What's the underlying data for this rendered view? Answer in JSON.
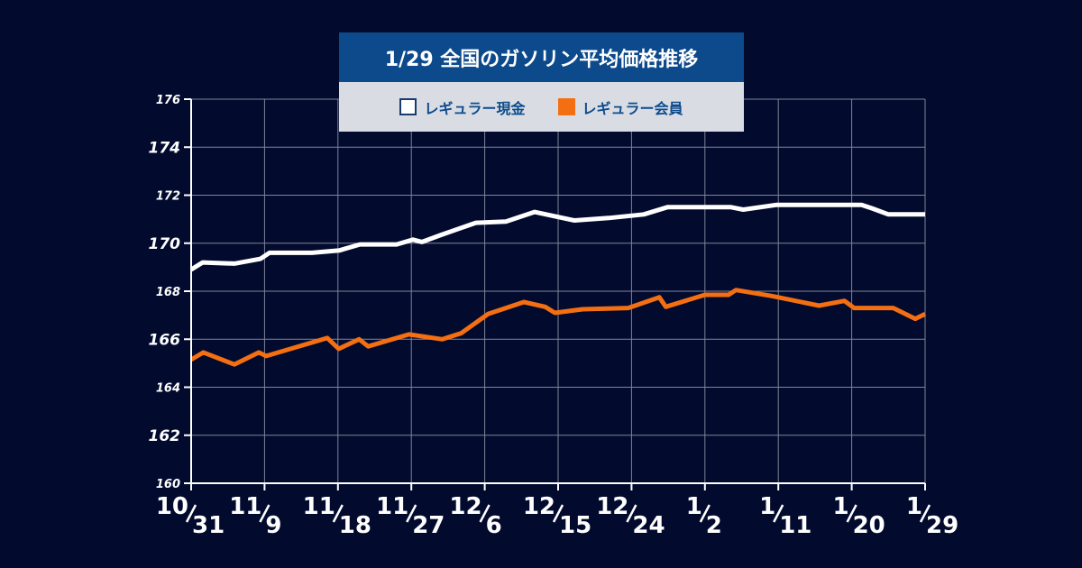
{
  "colors": {
    "background": "#020a2e",
    "grid": "#7f8597",
    "axis": "#ffffff",
    "title_bg": "#0d4a8c",
    "legend_bg": "#d9dde3",
    "cash": "#ffffff",
    "member": "#f36f12"
  },
  "chart_data": {
    "type": "line",
    "title": "1/29 全国のガソリン平均価格推移",
    "ylim": [
      160,
      176
    ],
    "yticks": [
      176,
      174,
      172,
      170,
      168,
      166,
      164,
      162,
      160
    ],
    "xlim": [
      0,
      90
    ],
    "xticks": [
      {
        "x": 0,
        "month": "10",
        "day": "31"
      },
      {
        "x": 9,
        "month": "11",
        "day": "9"
      },
      {
        "x": 18,
        "month": "11",
        "day": "18"
      },
      {
        "x": 27,
        "month": "11",
        "day": "27"
      },
      {
        "x": 36,
        "month": "12",
        "day": "6"
      },
      {
        "x": 45,
        "month": "12",
        "day": "15"
      },
      {
        "x": 54,
        "month": "12",
        "day": "24"
      },
      {
        "x": 63,
        "month": "1",
        "day": "2"
      },
      {
        "x": 72,
        "month": "1",
        "day": "11"
      },
      {
        "x": 81,
        "month": "1",
        "day": "20"
      },
      {
        "x": 90,
        "month": "1",
        "day": "29"
      }
    ],
    "series": [
      {
        "name": "レギュラー現金",
        "color": "#ffffff",
        "points": [
          [
            0,
            168.9
          ],
          [
            1.4,
            169.2
          ],
          [
            5.3,
            169.15
          ],
          [
            8.5,
            169.35
          ],
          [
            9.6,
            169.6
          ],
          [
            14.8,
            169.6
          ],
          [
            18.2,
            169.7
          ],
          [
            20.7,
            169.95
          ],
          [
            25.2,
            169.95
          ],
          [
            27.2,
            170.15
          ],
          [
            28.3,
            170.05
          ],
          [
            30.7,
            170.35
          ],
          [
            34.9,
            170.85
          ],
          [
            38.6,
            170.9
          ],
          [
            42.1,
            171.3
          ],
          [
            47.0,
            170.95
          ],
          [
            51.2,
            171.05
          ],
          [
            55.5,
            171.2
          ],
          [
            58.4,
            171.5
          ],
          [
            61.6,
            171.5
          ],
          [
            66.2,
            171.5
          ],
          [
            67.7,
            171.4
          ],
          [
            71.8,
            171.6
          ],
          [
            78.4,
            171.6
          ],
          [
            82.2,
            171.6
          ],
          [
            83.5,
            171.45
          ],
          [
            85.5,
            171.2
          ],
          [
            90,
            171.2
          ]
        ]
      },
      {
        "name": "レギュラー会員",
        "color": "#f36f12",
        "points": [
          [
            0,
            165.15
          ],
          [
            1.5,
            165.45
          ],
          [
            5.3,
            164.95
          ],
          [
            8.3,
            165.45
          ],
          [
            9.2,
            165.3
          ],
          [
            13.7,
            165.75
          ],
          [
            16.7,
            166.05
          ],
          [
            18.1,
            165.6
          ],
          [
            20.6,
            166.0
          ],
          [
            21.7,
            165.7
          ],
          [
            26.7,
            166.2
          ],
          [
            30.8,
            166.0
          ],
          [
            33.1,
            166.25
          ],
          [
            36.4,
            167.05
          ],
          [
            40.8,
            167.55
          ],
          [
            43.4,
            167.35
          ],
          [
            44.6,
            167.1
          ],
          [
            48.0,
            167.25
          ],
          [
            53.6,
            167.3
          ],
          [
            57.4,
            167.75
          ],
          [
            58.2,
            167.35
          ],
          [
            63.0,
            167.85
          ],
          [
            65.9,
            167.85
          ],
          [
            66.8,
            168.05
          ],
          [
            71.2,
            167.8
          ],
          [
            77.0,
            167.4
          ],
          [
            80.1,
            167.6
          ],
          [
            81.3,
            167.3
          ],
          [
            86.1,
            167.3
          ],
          [
            88.8,
            166.85
          ],
          [
            90,
            167.05
          ]
        ]
      }
    ]
  }
}
